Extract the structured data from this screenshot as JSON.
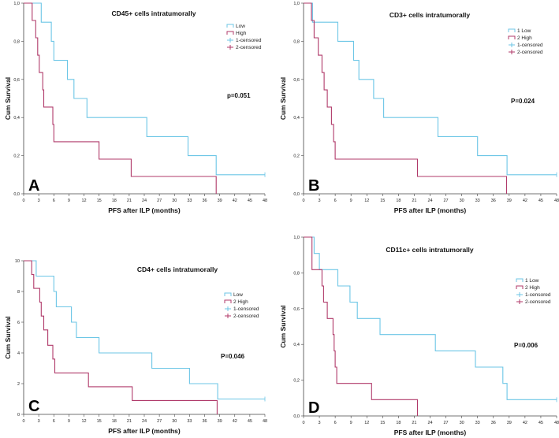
{
  "colors": {
    "low": "#6cc6e6",
    "high": "#b03a6a",
    "axis": "#444444",
    "text": "#111111"
  },
  "chart_data": [
    {
      "type": "line",
      "step": true,
      "panel_letter": "A",
      "title": "CD45+ cells intratumorally",
      "xlabel": "PFS after ILP (months)",
      "ylabel": "Cum Survival",
      "xlim": [
        0,
        48
      ],
      "ylim": [
        0,
        1.0
      ],
      "x_ticks": [
        "0",
        "3",
        "6",
        "9",
        "12",
        "15",
        "18",
        "21",
        "24",
        "27",
        "30",
        "33",
        "36",
        "39",
        "42",
        "45",
        "48"
      ],
      "y_ticks": [
        "0,0",
        "0,2",
        "0,4",
        "0,6",
        "0,8",
        "1,0"
      ],
      "legend": [
        "Low",
        "High",
        "1-censored",
        "2-censored"
      ],
      "p_value": "p=0.051",
      "series": [
        {
          "name": "Low",
          "points": [
            [
              0,
              1.0
            ],
            [
              3.5,
              1.0
            ],
            [
              3.5,
              0.9
            ],
            [
              5.5,
              0.9
            ],
            [
              5.5,
              0.8
            ],
            [
              6,
              0.8
            ],
            [
              6,
              0.7
            ],
            [
              8.7,
              0.7
            ],
            [
              8.7,
              0.6
            ],
            [
              10,
              0.6
            ],
            [
              10,
              0.5
            ],
            [
              12.6,
              0.5
            ],
            [
              12.6,
              0.4
            ],
            [
              24.5,
              0.4
            ],
            [
              24.5,
              0.3
            ],
            [
              32.7,
              0.3
            ],
            [
              32.7,
              0.2
            ],
            [
              38.3,
              0.2
            ],
            [
              38.3,
              0.1
            ],
            [
              48,
              0.1
            ]
          ]
        },
        {
          "name": "High",
          "points": [
            [
              0,
              1.0
            ],
            [
              1.7,
              1.0
            ],
            [
              1.7,
              0.909
            ],
            [
              2.4,
              0.909
            ],
            [
              2.4,
              0.818
            ],
            [
              2.8,
              0.818
            ],
            [
              2.8,
              0.727
            ],
            [
              3.1,
              0.727
            ],
            [
              3.1,
              0.636
            ],
            [
              3.8,
              0.636
            ],
            [
              3.8,
              0.545
            ],
            [
              4,
              0.545
            ],
            [
              4,
              0.455
            ],
            [
              5.8,
              0.455
            ],
            [
              5.8,
              0.364
            ],
            [
              6,
              0.364
            ],
            [
              6,
              0.273
            ],
            [
              15,
              0.273
            ],
            [
              15,
              0.182
            ],
            [
              21.4,
              0.182
            ],
            [
              21.4,
              0.091
            ],
            [
              38.3,
              0.091
            ],
            [
              38.3,
              0.0
            ]
          ]
        }
      ]
    },
    {
      "type": "line",
      "step": true,
      "panel_letter": "B",
      "title": "CD3+ cells intratumorally",
      "xlabel": "PFS after ILP (months)",
      "ylabel": "Cum Survival",
      "xlim": [
        0,
        48
      ],
      "ylim": [
        0,
        1.0
      ],
      "x_ticks": [
        "0",
        "3",
        "6",
        "9",
        "12",
        "15",
        "18",
        "21",
        "24",
        "27",
        "30",
        "33",
        "36",
        "39",
        "42",
        "45",
        "48"
      ],
      "y_ticks": [
        "0,0",
        "0,2",
        "0,4",
        "0,6",
        "0,8",
        "1,0"
      ],
      "legend": [
        "1 Low",
        "2 High",
        "1-censored",
        "2-censored"
      ],
      "p_value": "P=0.024",
      "series": [
        {
          "name": "1 Low",
          "points": [
            [
              0,
              1.0
            ],
            [
              1.7,
              1.0
            ],
            [
              1.7,
              0.9
            ],
            [
              6.5,
              0.9
            ],
            [
              6.5,
              0.8
            ],
            [
              9.5,
              0.8
            ],
            [
              9.5,
              0.7
            ],
            [
              10.5,
              0.7
            ],
            [
              10.5,
              0.6
            ],
            [
              13.3,
              0.6
            ],
            [
              13.3,
              0.5
            ],
            [
              15.2,
              0.5
            ],
            [
              15.2,
              0.4
            ],
            [
              25.5,
              0.4
            ],
            [
              25.5,
              0.3
            ],
            [
              33,
              0.3
            ],
            [
              33,
              0.2
            ],
            [
              38.6,
              0.2
            ],
            [
              38.6,
              0.1
            ],
            [
              48,
              0.1
            ]
          ]
        },
        {
          "name": "2 High",
          "points": [
            [
              0,
              1.0
            ],
            [
              1.5,
              1.0
            ],
            [
              1.5,
              0.909
            ],
            [
              2,
              0.909
            ],
            [
              2,
              0.818
            ],
            [
              2.8,
              0.818
            ],
            [
              2.8,
              0.727
            ],
            [
              3.5,
              0.727
            ],
            [
              3.5,
              0.636
            ],
            [
              3.9,
              0.636
            ],
            [
              3.9,
              0.545
            ],
            [
              4.5,
              0.545
            ],
            [
              4.5,
              0.455
            ],
            [
              5.3,
              0.455
            ],
            [
              5.3,
              0.364
            ],
            [
              5.7,
              0.364
            ],
            [
              5.7,
              0.273
            ],
            [
              6,
              0.273
            ],
            [
              6,
              0.182
            ],
            [
              21.6,
              0.182
            ],
            [
              21.6,
              0.091
            ],
            [
              38.5,
              0.091
            ],
            [
              38.5,
              0.0
            ]
          ]
        }
      ]
    },
    {
      "type": "line",
      "step": true,
      "panel_letter": "C",
      "title": "CD4+ cells intratumorally",
      "xlabel": "PFS after ILP (months)",
      "ylabel": "Cum Survival",
      "xlim": [
        0,
        48
      ],
      "ylim": [
        0,
        10
      ],
      "x_ticks": [
        "0",
        "3",
        "6",
        "9",
        "12",
        "15",
        "18",
        "21",
        "24",
        "27",
        "30",
        "33",
        "36",
        "39",
        "42",
        "45",
        "48"
      ],
      "y_ticks": [
        "0",
        "2",
        "4",
        "6",
        "8",
        "10"
      ],
      "legend": [
        "Low",
        "2 High",
        "1-censored",
        "2-censored"
      ],
      "p_value": "P=0.046",
      "series": [
        {
          "name": "Low",
          "points": [
            [
              0,
              10
            ],
            [
              2.5,
              10
            ],
            [
              2.5,
              9
            ],
            [
              6,
              9
            ],
            [
              6,
              8
            ],
            [
              6.5,
              8
            ],
            [
              6.5,
              7
            ],
            [
              9.5,
              7
            ],
            [
              9.5,
              6
            ],
            [
              10.5,
              6
            ],
            [
              10.5,
              5
            ],
            [
              15,
              5
            ],
            [
              15,
              4
            ],
            [
              25.5,
              4
            ],
            [
              25.5,
              3
            ],
            [
              33,
              3
            ],
            [
              33,
              2
            ],
            [
              38.6,
              2
            ],
            [
              38.6,
              1
            ],
            [
              48,
              1
            ]
          ]
        },
        {
          "name": "2 High",
          "points": [
            [
              0,
              10
            ],
            [
              1.6,
              10
            ],
            [
              1.6,
              9.1
            ],
            [
              2,
              9.1
            ],
            [
              2,
              8.2
            ],
            [
              3.2,
              8.2
            ],
            [
              3.2,
              7.3
            ],
            [
              3.5,
              7.3
            ],
            [
              3.5,
              6.4
            ],
            [
              4,
              6.4
            ],
            [
              4,
              5.5
            ],
            [
              4.8,
              5.5
            ],
            [
              4.8,
              4.5
            ],
            [
              5.8,
              4.5
            ],
            [
              5.8,
              3.6
            ],
            [
              6.2,
              3.6
            ],
            [
              6.2,
              2.7
            ],
            [
              12.9,
              2.7
            ],
            [
              12.9,
              1.8
            ],
            [
              21.6,
              1.8
            ],
            [
              21.6,
              0.9
            ],
            [
              38.5,
              0.9
            ],
            [
              38.5,
              0
            ]
          ]
        }
      ]
    },
    {
      "type": "line",
      "step": true,
      "panel_letter": "D",
      "title": "CD11c+ cells intratumorally",
      "xlabel": "PFS after ILP (months)",
      "ylabel": "Cum Survival",
      "xlim": [
        0,
        48
      ],
      "ylim": [
        0,
        1.0
      ],
      "x_ticks": [
        "0",
        "3",
        "6",
        "9",
        "12",
        "15",
        "18",
        "21",
        "24",
        "27",
        "30",
        "33",
        "36",
        "39",
        "42",
        "45",
        "48"
      ],
      "y_ticks": [
        "0,0",
        "0,2",
        "0,4",
        "0,6",
        "0,8",
        "1,0"
      ],
      "legend": [
        "1 Low",
        "2 High",
        "1-censored",
        "2-censored"
      ],
      "p_value": "P=0.006",
      "series": [
        {
          "name": "1 Low",
          "points": [
            [
              0,
              1.0
            ],
            [
              2,
              1.0
            ],
            [
              2,
              0.909
            ],
            [
              3,
              0.909
            ],
            [
              3,
              0.818
            ],
            [
              6.5,
              0.818
            ],
            [
              6.5,
              0.727
            ],
            [
              8.8,
              0.727
            ],
            [
              8.8,
              0.636
            ],
            [
              10.2,
              0.636
            ],
            [
              10.2,
              0.545
            ],
            [
              14.5,
              0.545
            ],
            [
              14.5,
              0.455
            ],
            [
              25,
              0.455
            ],
            [
              25,
              0.364
            ],
            [
              32.6,
              0.364
            ],
            [
              32.6,
              0.273
            ],
            [
              37.8,
              0.273
            ],
            [
              37.8,
              0.182
            ],
            [
              38.6,
              0.182
            ],
            [
              38.6,
              0.091
            ],
            [
              48,
              0.091
            ]
          ]
        },
        {
          "name": "2 High",
          "points": [
            [
              0,
              1.0
            ],
            [
              1.6,
              1.0
            ],
            [
              1.6,
              0.818
            ],
            [
              3.5,
              0.818
            ],
            [
              3.5,
              0.727
            ],
            [
              3.8,
              0.727
            ],
            [
              3.8,
              0.636
            ],
            [
              4.5,
              0.636
            ],
            [
              4.5,
              0.545
            ],
            [
              5.6,
              0.545
            ],
            [
              5.6,
              0.455
            ],
            [
              5.8,
              0.455
            ],
            [
              5.8,
              0.364
            ],
            [
              6,
              0.364
            ],
            [
              6,
              0.273
            ],
            [
              6.3,
              0.273
            ],
            [
              6.3,
              0.182
            ],
            [
              12.9,
              0.182
            ],
            [
              12.9,
              0.091
            ],
            [
              21.6,
              0.091
            ],
            [
              21.6,
              0.0
            ]
          ]
        }
      ]
    }
  ]
}
